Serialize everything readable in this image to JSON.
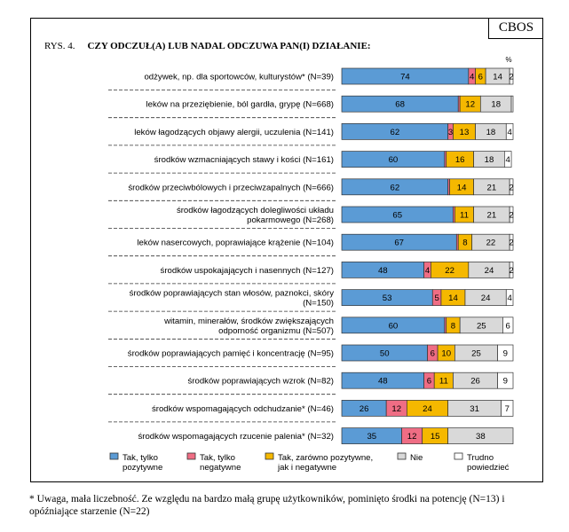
{
  "brand": "CBOS",
  "figure": {
    "number": "RYS. 4.",
    "title": "CZY ODCZUŁ(A) LUB NADAL ODCZUWA PAN(I) DZIAŁANIE:"
  },
  "chart_data": {
    "type": "bar",
    "orientation": "horizontal",
    "stacked": true,
    "percent_label": "%",
    "categories": [
      [
        "odżywek, np. dla sportowców, kulturystów* (N=39)"
      ],
      [
        "leków na przeziębienie, ból gardła, grypę (N=668)"
      ],
      [
        "leków łagodzących objawy alergii, uczulenia (N=141)"
      ],
      [
        "środków wzmacniających stawy i kości (N=161)"
      ],
      [
        "środków przeciwbólowych i przeciwzapalnych (N=666)"
      ],
      [
        "środków łagodzących dolegliwości układu",
        "pokarmowego (N=268)"
      ],
      [
        "leków nasercowych, poprawiające krążenie (N=104)"
      ],
      [
        "środków uspokajających i nasennych (N=127)"
      ],
      [
        "środków poprawiających stan włosów, paznokci, skóry",
        "(N=150)"
      ],
      [
        "witamin, minerałów, środków zwiększających",
        "odporność organizmu (N=507)"
      ],
      [
        "środków poprawiających pamięć i koncentrację (N=95)"
      ],
      [
        "środków poprawiających wzrok (N=82)"
      ],
      [
        "środków wspomagających odchudzanie* (N=46)"
      ],
      [
        "środków wspomagających rzucenie palenia* (N=32)"
      ]
    ],
    "series": [
      {
        "name": "Tak, tylko pozytywne",
        "legend_lines": [
          "Tak, tylko",
          "pozytywne"
        ],
        "color": "#5b9bd5",
        "values": [
          74,
          68,
          62,
          60,
          62,
          65,
          67,
          48,
          53,
          60,
          50,
          48,
          26,
          35
        ],
        "labels": [
          "74",
          "68",
          "62",
          "60",
          "62",
          "65",
          "67",
          "48",
          "53",
          "60",
          "50",
          "48",
          "26",
          "35"
        ]
      },
      {
        "name": "Tak, tylko negatywne",
        "legend_lines": [
          "Tak, tylko",
          "negatywne"
        ],
        "color": "#ef6d84",
        "values": [
          4,
          1,
          3,
          1,
          1,
          1,
          1,
          4,
          5,
          1,
          6,
          6,
          12,
          12
        ],
        "labels": [
          "4",
          "",
          "3",
          "",
          "",
          "",
          "",
          "4",
          "5",
          "",
          "6",
          "6",
          "12",
          "12"
        ]
      },
      {
        "name": "Tak, zarówno pozytywne, jak i negatywne",
        "legend_lines": [
          "Tak, zarówno pozytywne,",
          "jak i negatywne"
        ],
        "color": "#f5b800",
        "values": [
          6,
          12,
          13,
          16,
          14,
          11,
          8,
          22,
          14,
          8,
          10,
          11,
          24,
          15
        ],
        "labels": [
          "6",
          "12",
          "13",
          "16",
          "14",
          "11",
          "8",
          "22",
          "14",
          "8",
          "10",
          "11",
          "24",
          "15"
        ]
      },
      {
        "name": "Nie",
        "legend_lines": [
          "Nie"
        ],
        "color": "#d9d9d9",
        "values": [
          14,
          18,
          18,
          18,
          21,
          21,
          22,
          24,
          24,
          25,
          25,
          26,
          31,
          38
        ],
        "labels": [
          "14",
          "18",
          "18",
          "18",
          "21",
          "21",
          "22",
          "24",
          "24",
          "25",
          "25",
          "26",
          "31",
          "38"
        ]
      },
      {
        "name": "Trudno powiedzieć",
        "legend_lines": [
          "Trudno",
          "powiedzieć"
        ],
        "color": "#ffffff",
        "values": [
          2,
          1,
          4,
          4,
          2,
          2,
          2,
          2,
          4,
          6,
          9,
          9,
          7,
          0
        ],
        "labels": [
          "2",
          "",
          "4",
          "4",
          "2",
          "2",
          "2",
          "2",
          "4",
          "6",
          "9",
          "9",
          "7",
          ""
        ]
      }
    ],
    "xlim": [
      0,
      100
    ]
  },
  "footnote": "* Uwaga, mała liczebność. Ze względu na bardzo małą grupę użytkowników, pominięto środki na potencję (N=13) i opóźniające starzenie (N=22)"
}
